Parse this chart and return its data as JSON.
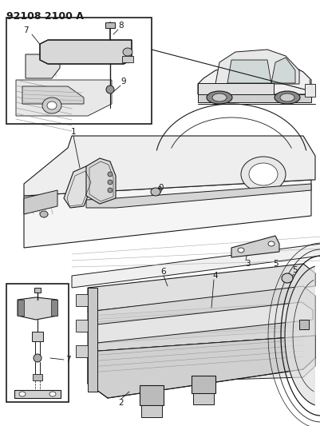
{
  "title": "92108 2100 A",
  "bg_color": "#ffffff",
  "line_color": "#1a1a1a",
  "gray_light": "#cccccc",
  "gray_mid": "#aaaaaa",
  "gray_dark": "#666666",
  "title_fontsize": 9,
  "label_fontsize": 7.5,
  "fig_w": 4.02,
  "fig_h": 5.33,
  "dpi": 100
}
